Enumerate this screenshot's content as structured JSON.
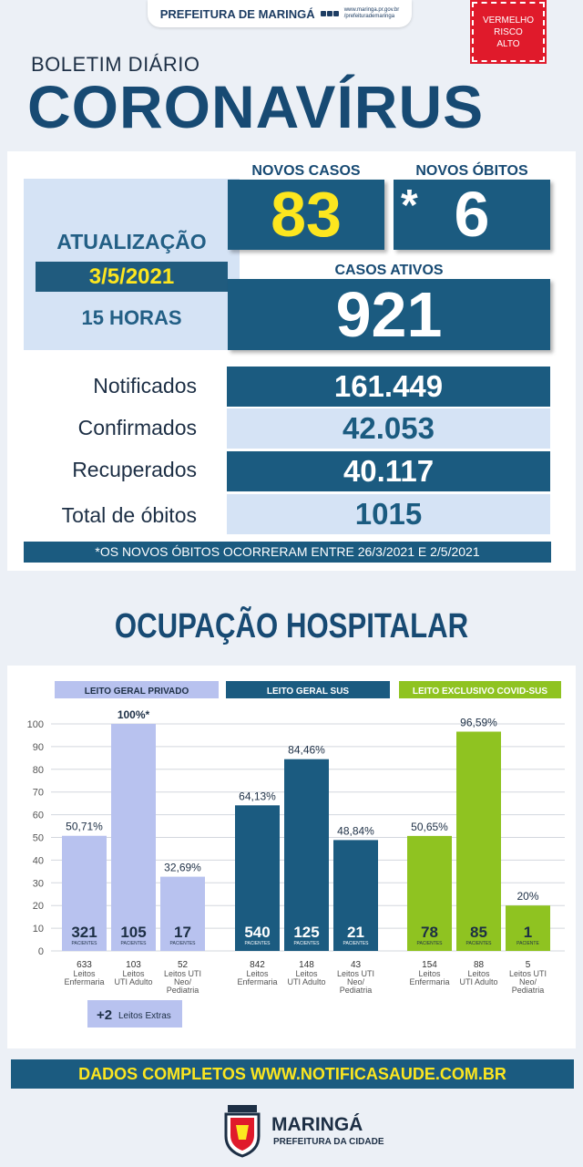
{
  "header": {
    "prefeitura": "PREFEITURA DE MARINGÁ",
    "site_line1": "www.maringa.pr.gov.br",
    "site_line2": "/prefeiturademaringa",
    "risk_line1": "VERMELHO",
    "risk_line2": "RISCO",
    "risk_line3": "ALTO",
    "bulletin": "BOLETIM DIÁRIO",
    "title": "CORONAVÍRUS"
  },
  "update": {
    "label": "ATUALIZAÇÃO",
    "date": "3/5/2021",
    "time": "15 HORAS"
  },
  "highlights": {
    "new_cases_label": "NOVOS CASOS",
    "new_cases": "83",
    "new_deaths_label": "NOVOS ÓBITOS",
    "new_deaths_star": "*",
    "new_deaths": "6",
    "active_label": "CASOS ATIVOS",
    "active": "921"
  },
  "totals": [
    {
      "label": "Notificados",
      "value": "161.449"
    },
    {
      "label": "Confirmados",
      "value": "42.053"
    },
    {
      "label": "Recuperados",
      "value": "40.117"
    },
    {
      "label": "Total de óbitos",
      "value": "1015"
    }
  ],
  "note": "*OS NOVOS ÓBITOS OCORRERAM ENTRE 26/3/2021 E 2/5/2021",
  "hospital_title": "OCUPAÇÃO HOSPITALAR",
  "chart_data": {
    "type": "bar",
    "ylim": [
      0,
      100
    ],
    "yticks": [
      0,
      10,
      20,
      30,
      40,
      50,
      60,
      70,
      80,
      90,
      100
    ],
    "grid": true,
    "patients_word": "PACIENTES",
    "patient_word": "PACIENTE",
    "colors": {
      "privado": "#b8c2ef",
      "sus": "#1b5b80",
      "covid": "#8fc321"
    },
    "groups": [
      {
        "name": "LEITO GERAL PRIVADO",
        "color_key": "privado",
        "bars": [
          {
            "pct_label": "50,71%",
            "value": 50.71,
            "patients": "321",
            "patients_word": "PACIENTES",
            "beds": "633",
            "bed_type": [
              "Leitos",
              "Enfermaria"
            ]
          },
          {
            "pct_label": "100%*",
            "value": 100,
            "patients": "105",
            "patients_word": "PACIENTES",
            "beds": "103",
            "bed_type": [
              "Leitos",
              "UTI Adulto"
            ]
          },
          {
            "pct_label": "32,69%",
            "value": 32.69,
            "patients": "17",
            "patients_word": "PACIENTES",
            "beds": "52",
            "bed_type": [
              "Leitos UTI",
              "Neo/",
              "Pediatria"
            ]
          }
        ]
      },
      {
        "name": "LEITO GERAL SUS",
        "color_key": "sus",
        "bars": [
          {
            "pct_label": "64,13%",
            "value": 64.13,
            "patients": "540",
            "patients_word": "PACIENTES",
            "beds": "842",
            "bed_type": [
              "Leitos",
              "Enfermaria"
            ]
          },
          {
            "pct_label": "84,46%",
            "value": 84.46,
            "patients": "125",
            "patients_word": "PACIENTES",
            "beds": "148",
            "bed_type": [
              "Leitos",
              "UTI Adulto"
            ]
          },
          {
            "pct_label": "48,84%",
            "value": 48.84,
            "patients": "21",
            "patients_word": "PACIENTES",
            "beds": "43",
            "bed_type": [
              "Leitos UTI",
              "Neo/",
              "Pediatria"
            ]
          }
        ]
      },
      {
        "name": "LEITO EXCLUSIVO COVID-SUS",
        "color_key": "covid",
        "bars": [
          {
            "pct_label": "50,65%",
            "value": 50.65,
            "patients": "78",
            "patients_word": "PACIENTES",
            "beds": "154",
            "bed_type": [
              "Leitos",
              "Enfermaria"
            ]
          },
          {
            "pct_label": "96,59%",
            "value": 96.59,
            "patients": "85",
            "patients_word": "PACIENTES",
            "beds": "88",
            "bed_type": [
              "Leitos",
              "UTI Adulto"
            ]
          },
          {
            "pct_label": "20%",
            "value": 20,
            "patients": "1",
            "patients_word": "PACIENTE",
            "beds": "5",
            "bed_type": [
              "Leitos UTI",
              "Neo/",
              "Pediatria"
            ]
          }
        ]
      }
    ],
    "extra_beds": {
      "value": "+2",
      "label": "Leitos Extras"
    }
  },
  "footer": {
    "text": "DADOS COMPLETOS  WWW.NOTIFICASAUDE.COM.BR",
    "city": "MARINGÁ",
    "subtitle": "PREFEITURA DA CIDADE"
  }
}
